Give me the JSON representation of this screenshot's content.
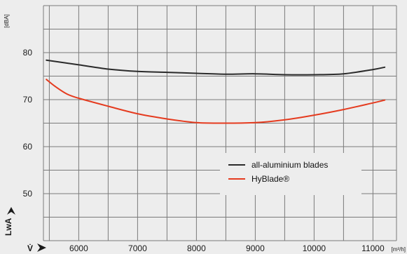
{
  "chart_data": {
    "type": "line",
    "y_unit": "[dBA]",
    "x_unit": "[m³/h]",
    "y_axis_label": "LwA",
    "x_axis_label": "V̇",
    "xlim": [
      5400,
      11400
    ],
    "ylim": [
      40,
      90
    ],
    "x_ticks": [
      "6000",
      "7000",
      "8000",
      "9000",
      "10000",
      "11000"
    ],
    "x_tick_values": [
      6000,
      7000,
      8000,
      9000,
      10000,
      11000
    ],
    "y_ticks": [
      "50",
      "60",
      "70",
      "80"
    ],
    "y_tick_values": [
      50,
      60,
      70,
      80
    ],
    "x_gridlines": [
      5500,
      6000,
      6500,
      7000,
      7500,
      8000,
      8500,
      9000,
      9500,
      10000,
      10500,
      11000
    ],
    "y_gridlines": [
      45,
      50,
      55,
      60,
      65,
      70,
      75,
      80,
      85
    ],
    "grid": true,
    "legend_position": "bottom-right",
    "series": [
      {
        "name": "all-aluminium blades",
        "color": "#2b2b2b",
        "x": [
          5450,
          6000,
          6500,
          7000,
          7500,
          8000,
          8500,
          9000,
          9500,
          10000,
          10500,
          11000,
          11200
        ],
        "y": [
          78.4,
          77.4,
          76.5,
          76.0,
          75.8,
          75.6,
          75.4,
          75.5,
          75.3,
          75.3,
          75.5,
          76.4,
          76.9
        ]
      },
      {
        "name": "HyBlade®",
        "color": "#e53b1f",
        "x": [
          5450,
          5600,
          5800,
          6000,
          6500,
          7000,
          7500,
          8000,
          8500,
          9000,
          9500,
          10000,
          10500,
          11000,
          11200
        ],
        "y": [
          74.3,
          72.8,
          71.2,
          70.3,
          68.6,
          67.0,
          65.9,
          65.1,
          65.0,
          65.1,
          65.7,
          66.7,
          67.9,
          69.3,
          69.9
        ]
      }
    ]
  }
}
